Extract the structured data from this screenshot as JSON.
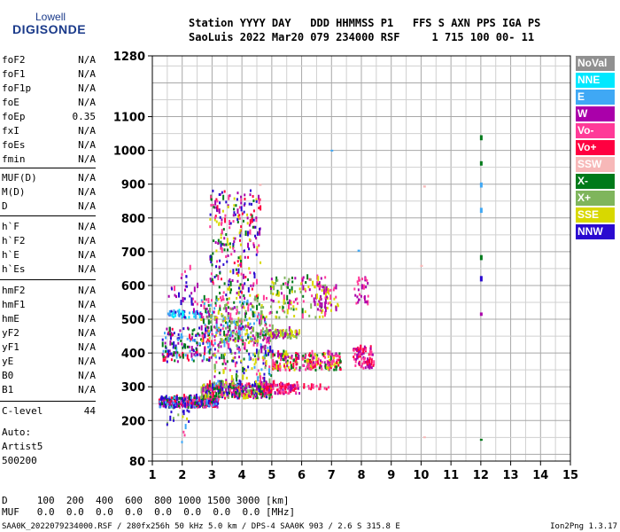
{
  "logo": {
    "line1": "Lowell",
    "line2": "DIGISONDE"
  },
  "header": {
    "line1": "Station YYYY DAY   DDD HHMMSS P1   FFS S AXN PPS IGA PS",
    "line2": "SaoLuis 2022 Mar20 079 234000 RSF     1 715 100 00- 11"
  },
  "params_group1": [
    {
      "name": "foF2",
      "value": "N/A"
    },
    {
      "name": "foF1",
      "value": "N/A"
    },
    {
      "name": "foF1p",
      "value": "N/A"
    },
    {
      "name": "foE",
      "value": "N/A"
    },
    {
      "name": "foEp",
      "value": "0.35"
    },
    {
      "name": "fxI",
      "value": "N/A"
    },
    {
      "name": "foEs",
      "value": "N/A"
    },
    {
      "name": "fmin",
      "value": "N/A"
    }
  ],
  "params_group2": [
    {
      "name": "MUF(D)",
      "value": "N/A"
    },
    {
      "name": "M(D)",
      "value": "N/A"
    },
    {
      "name": "D",
      "value": "N/A"
    }
  ],
  "params_group3": [
    {
      "name": "h`F",
      "value": "N/A"
    },
    {
      "name": "h`F2",
      "value": "N/A"
    },
    {
      "name": "h`E",
      "value": "N/A"
    },
    {
      "name": "h`Es",
      "value": "N/A"
    }
  ],
  "params_group4": [
    {
      "name": "hmF2",
      "value": "N/A"
    },
    {
      "name": "hmF1",
      "value": "N/A"
    },
    {
      "name": "hmE",
      "value": "N/A"
    },
    {
      "name": "yF2",
      "value": "N/A"
    },
    {
      "name": "yF1",
      "value": "N/A"
    },
    {
      "name": "yE",
      "value": "N/A"
    },
    {
      "name": "B0",
      "value": "N/A"
    },
    {
      "name": "B1",
      "value": "N/A"
    }
  ],
  "clevel": {
    "name": "C-level",
    "value": "44"
  },
  "auto": {
    "line1": "Auto:",
    "line2": "Artist5",
    "line3": "500200"
  },
  "bottom": {
    "d_line": "D     100  200  400  600  800 1000 1500 3000 [km]",
    "muf_line": "MUF   0.0  0.0  0.0  0.0  0.0  0.0  0.0  0.0 [MHz]"
  },
  "footer": {
    "left": "SAA0K_2022079234000.RSF / 280fx256h 50 kHz 5.0 km / DPS-4 SAA0K 903 / 2.6 S 315.8 E",
    "right": "Ion2Png 1.3.17"
  },
  "legend": [
    {
      "label": "NoVal",
      "color": "#909090"
    },
    {
      "label": "NNE",
      "color": "#00e8ff"
    },
    {
      "label": "E",
      "color": "#3fa8f5"
    },
    {
      "label": "W",
      "color": "#aa00aa"
    },
    {
      "label": "Vo-",
      "color": "#ff3a98"
    },
    {
      "label": "Vo+",
      "color": "#ff0040"
    },
    {
      "label": "SSW",
      "color": "#f7b8b8"
    },
    {
      "label": "X-",
      "color": "#007a1a"
    },
    {
      "label": "X+",
      "color": "#7fb55c"
    },
    {
      "label": "SSE",
      "color": "#d8d800"
    },
    {
      "label": "NNW",
      "color": "#2a0ad0"
    }
  ],
  "chart_data": {
    "type": "scatter",
    "xlim": [
      1,
      15
    ],
    "ylim": [
      80,
      1280
    ],
    "x_ticks": [
      "1",
      "2",
      "3",
      "4",
      "5",
      "6",
      "7",
      "8",
      "9",
      "10",
      "11",
      "12",
      "13",
      "14",
      "15"
    ],
    "y_tick_labels": [
      {
        "value": 1280,
        "label": "1280"
      },
      {
        "value": 1100,
        "label": "1100"
      },
      {
        "value": 1000,
        "label": "1000"
      },
      {
        "value": 900,
        "label": "900"
      },
      {
        "value": 800,
        "label": "800"
      },
      {
        "value": 700,
        "label": "700"
      },
      {
        "value": 600,
        "label": "600"
      },
      {
        "value": 500,
        "label": "500"
      },
      {
        "value": 400,
        "label": "400"
      },
      {
        "value": 300,
        "label": "300"
      },
      {
        "value": 200,
        "label": "200"
      },
      {
        "value": 80,
        "label": "80"
      }
    ],
    "grid": true,
    "clusters": [
      {
        "x0": 1.2,
        "x1": 3.2,
        "y0": 235,
        "y1": 265,
        "n": 380,
        "colors": [
          "#2a0ad0",
          "#2a0ad0",
          "#aa00aa",
          "#ff0040",
          "#ff3a98",
          "#007a1a",
          "#3fa8f5"
        ]
      },
      {
        "x0": 2.6,
        "x1": 5.0,
        "y0": 262,
        "y1": 305,
        "n": 380,
        "colors": [
          "#ff0040",
          "#ff3a98",
          "#aa00aa",
          "#2a0ad0",
          "#007a1a",
          "#d8d800",
          "#7fb55c"
        ]
      },
      {
        "x0": 4.7,
        "x1": 5.9,
        "y0": 275,
        "y1": 305,
        "n": 110,
        "colors": [
          "#ff0040",
          "#ff3a98",
          "#aa00aa"
        ]
      },
      {
        "x0": 6.0,
        "x1": 6.9,
        "y0": 288,
        "y1": 298,
        "n": 14,
        "colors": [
          "#ff0040",
          "#ff3a98"
        ]
      },
      {
        "x0": 1.3,
        "x1": 3.0,
        "y0": 370,
        "y1": 470,
        "n": 160,
        "colors": [
          "#2a0ad0",
          "#aa00aa",
          "#ff0040",
          "#3fa8f5",
          "#007a1a"
        ]
      },
      {
        "x0": 3.0,
        "x1": 5.0,
        "y0": 300,
        "y1": 480,
        "n": 240,
        "colors": [
          "#aa00aa",
          "#2a0ad0",
          "#ff3a98",
          "#d8d800",
          "#007a1a",
          "#7fb55c",
          "#3fa8f5"
        ]
      },
      {
        "x0": 5.0,
        "x1": 7.3,
        "y0": 345,
        "y1": 395,
        "n": 230,
        "colors": [
          "#ff0040",
          "#ff3a98",
          "#aa00aa",
          "#d8d800",
          "#007a1a"
        ]
      },
      {
        "x0": 7.7,
        "x1": 8.4,
        "y0": 350,
        "y1": 410,
        "n": 80,
        "colors": [
          "#ff0040",
          "#ff3a98",
          "#aa00aa"
        ]
      },
      {
        "x0": 1.5,
        "x1": 3.0,
        "y0": 500,
        "y1": 520,
        "n": 60,
        "colors": [
          "#3fa8f5",
          "#00e8ff",
          "#2a0ad0",
          "#aa00aa"
        ]
      },
      {
        "x0": 2.6,
        "x1": 4.8,
        "y0": 430,
        "y1": 560,
        "n": 280,
        "colors": [
          "#d8d800",
          "#7fb55c",
          "#aa00aa",
          "#007a1a",
          "#3fa8f5",
          "#ff3a98"
        ]
      },
      {
        "x0": 4.8,
        "x1": 5.9,
        "y0": 440,
        "y1": 465,
        "n": 90,
        "colors": [
          "#d8d800",
          "#7fb55c",
          "#aa00aa"
        ]
      },
      {
        "x0": 4.9,
        "x1": 6.8,
        "y0": 500,
        "y1": 620,
        "n": 130,
        "colors": [
          "#d8d800",
          "#aa00aa",
          "#ff3a98",
          "#007a1a",
          "#7fb55c"
        ]
      },
      {
        "x0": 6.5,
        "x1": 7.2,
        "y0": 520,
        "y1": 600,
        "n": 50,
        "colors": [
          "#ff3a98",
          "#aa00aa",
          "#d8d800"
        ]
      },
      {
        "x0": 7.7,
        "x1": 8.2,
        "y0": 540,
        "y1": 620,
        "n": 30,
        "colors": [
          "#ff3a98",
          "#aa00aa"
        ]
      },
      {
        "x0": 2.9,
        "x1": 4.6,
        "y0": 560,
        "y1": 880,
        "n": 260,
        "colors": [
          "#aa00aa",
          "#ff3a98",
          "#2a0ad0",
          "#ff0040",
          "#d8d800",
          "#007a1a"
        ]
      },
      {
        "x0": 1.5,
        "x1": 2.6,
        "y0": 540,
        "y1": 650,
        "n": 30,
        "colors": [
          "#aa00aa",
          "#ff3a98",
          "#2a0ad0"
        ]
      },
      {
        "x0": 1.4,
        "x1": 2.6,
        "y0": 180,
        "y1": 235,
        "n": 16,
        "colors": [
          "#d8d800",
          "#7fb55c",
          "#2a0ad0"
        ]
      },
      {
        "x0": 1.9,
        "x1": 2.2,
        "y0": 130,
        "y1": 180,
        "n": 4,
        "colors": [
          "#3fa8f5",
          "#ff3a98"
        ]
      }
    ],
    "column_points": [
      {
        "x": 12.0,
        "y0": 1030,
        "y1": 1045,
        "color": "#007a1a"
      },
      {
        "x": 12.0,
        "y0": 955,
        "y1": 968,
        "color": "#007a1a"
      },
      {
        "x": 12.0,
        "y0": 890,
        "y1": 905,
        "color": "#3fa8f5"
      },
      {
        "x": 12.0,
        "y0": 815,
        "y1": 830,
        "color": "#3fa8f5"
      },
      {
        "x": 12.0,
        "y0": 675,
        "y1": 690,
        "color": "#007a1a"
      },
      {
        "x": 12.0,
        "y0": 612,
        "y1": 628,
        "color": "#2a0ad0"
      },
      {
        "x": 12.0,
        "y0": 510,
        "y1": 520,
        "color": "#aa00aa"
      },
      {
        "x": 12.0,
        "y0": 140,
        "y1": 146,
        "color": "#007a1a"
      },
      {
        "x": 7.0,
        "y0": 998,
        "y1": 1002,
        "color": "#3fa8f5"
      },
      {
        "x": 10.1,
        "y0": 890,
        "y1": 896,
        "color": "#f7b8b8"
      },
      {
        "x": 10.0,
        "y0": 655,
        "y1": 661,
        "color": "#f7b8b8"
      },
      {
        "x": 10.1,
        "y0": 148,
        "y1": 153,
        "color": "#f7b8b8"
      },
      {
        "x": 7.9,
        "y0": 700,
        "y1": 706,
        "color": "#3fa8f5"
      },
      {
        "x": 4.6,
        "y0": 895,
        "y1": 901,
        "color": "#f7b8b8"
      }
    ]
  }
}
